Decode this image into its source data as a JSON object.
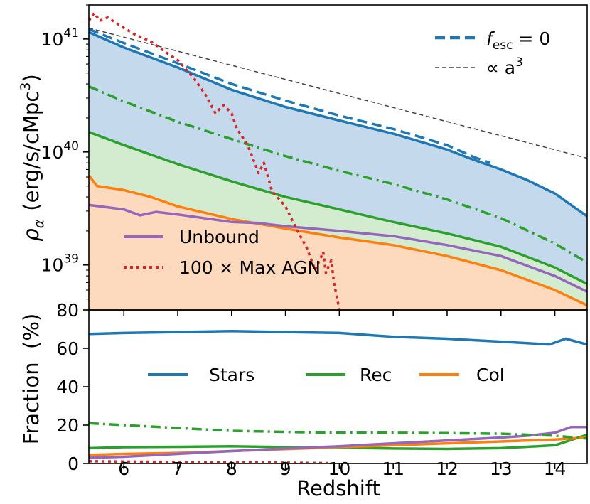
{
  "chart_data": [
    {
      "type": "area",
      "ylabel_symbol": "ρ",
      "ylabel_sub": "α",
      "ylabel_units": "(erg/s/cMpc",
      "ylabel_units_sup": "3",
      "ylabel_units_close": ")",
      "xlim": [
        5.35,
        14.6
      ],
      "ylim": [
        400000000000000000000000000000000000000,
        2e+41
      ],
      "yscale": "log",
      "yticks": [
        {
          "value": 1e+39,
          "base": "10",
          "exp": "39"
        },
        {
          "value": 1e+40,
          "base": "10",
          "exp": "40"
        },
        {
          "value": 1e+41,
          "base": "10",
          "exp": "41"
        }
      ],
      "grid": false,
      "series": [
        {
          "id": "stars",
          "style": "solid",
          "color": "#1f77b4",
          "fill": "#c5d9ec",
          "x": [
            5.35,
            6,
            7,
            8,
            9,
            10,
            11,
            12,
            12.5,
            13,
            13.5,
            14,
            14.3,
            14.6
          ],
          "y": [
            1.15e+41,
            8.4e+40,
            5.6e+40,
            3.55e+40,
            2.5e+40,
            1.9e+40,
            1.45e+40,
            1.05e+40,
            8.5e+39,
            7e+39,
            5.6e+39,
            4.3e+39,
            3.4e+39,
            2.7e+39
          ]
        },
        {
          "id": "stars-fesc0",
          "style": "dashed",
          "color": "#1f77b4",
          "x": [
            5.35,
            6,
            7,
            8,
            9,
            10,
            11,
            12,
            12.5,
            12.8
          ],
          "y": [
            1.22e+41,
            9.2e+40,
            6.1e+40,
            4e+40,
            2.85e+40,
            2.1e+40,
            1.6e+40,
            1.15e+40,
            9e+39,
            8e+39
          ]
        },
        {
          "id": "rec-fesc0",
          "style": "dashdot",
          "color": "#2ca02c",
          "x": [
            5.35,
            6,
            7,
            8,
            9,
            10,
            11,
            12,
            13,
            14,
            14.6
          ],
          "y": [
            3.8e+40,
            2.8e+40,
            1.85e+40,
            1.3e+40,
            9.2e+39,
            6.8e+39,
            5.2e+39,
            3.8e+39,
            2.6e+39,
            1.55e+39,
            1.05e+39
          ]
        },
        {
          "id": "rec",
          "style": "solid",
          "color": "#2ca02c",
          "fill": "#d3ecd0",
          "x": [
            5.35,
            6,
            7,
            8,
            9,
            10,
            11,
            12,
            13,
            14,
            14.6
          ],
          "y": [
            1.5e+40,
            1.15e+40,
            7.8e+39,
            5.5e+39,
            4e+39,
            3.1e+39,
            2.4e+39,
            1.9e+39,
            1.45e+39,
            9.5e+38,
            6.8e+38
          ]
        },
        {
          "id": "col",
          "style": "solid",
          "color": "#ff7f0e",
          "fill": "#fdd9bd",
          "x": [
            5.35,
            5.5,
            6,
            6.5,
            7,
            8,
            9,
            10,
            11,
            12,
            13,
            14,
            14.6
          ],
          "y": [
            6.2e+39,
            5e+39,
            4.6e+39,
            4e+39,
            3.3e+39,
            2.55e+39,
            2.1e+39,
            1.75e+39,
            1.5e+39,
            1.2e+39,
            9e+38,
            6e+38,
            4.4e+38
          ]
        },
        {
          "id": "unbound",
          "style": "solid",
          "color": "#9467bd",
          "x": [
            5.35,
            6,
            6.3,
            6.6,
            7,
            8,
            8.5,
            9,
            10,
            11,
            12,
            13,
            14,
            14.6
          ],
          "y": [
            3.4e+39,
            3.1e+39,
            2.75e+39,
            2.95e+39,
            2.8e+39,
            2.4e+39,
            2.35e+39,
            2.2e+39,
            2e+39,
            1.8e+39,
            1.5e+39,
            1.2e+39,
            8e+38,
            5.8e+38
          ]
        },
        {
          "id": "max-agn",
          "style": "dotted",
          "color": "#d62728",
          "x": [
            5.35,
            5.45,
            5.55,
            5.7,
            6,
            6.2,
            6.5,
            6.8,
            7,
            7.3,
            7.5,
            7.7,
            7.85,
            8,
            8.1,
            8.3,
            8.5,
            8.6,
            8.75,
            9,
            9.2,
            9.4,
            9.55,
            9.7,
            9.75,
            9.85,
            9.9,
            10
          ],
          "y": [
            1.45e+41,
            1.7e+41,
            1.45e+41,
            1.55e+41,
            1.25e+41,
            1.1e+41,
            9.5e+40,
            7.5e+40,
            6.5e+40,
            4.5e+40,
            3.3e+40,
            2.2e+40,
            2.6e+40,
            2.2e+40,
            1.6e+40,
            1.15e+40,
            6.5e+39,
            8e+39,
            4.5e+39,
            3.3e+39,
            2.1e+39,
            1.4e+39,
            9e+38,
            1.3e+39,
            8.5e+38,
            1.1e+39,
            7e+38,
            4e+38
          ]
        },
        {
          "id": "a3",
          "style": "thin-dashed",
          "color": "#444444",
          "x": [
            5.35,
            14.6
          ],
          "y": [
            1.25e+41,
            8.8e+39
          ]
        }
      ],
      "legend_top_right": [
        {
          "series": "stars-fesc0",
          "label_pre": "f",
          "label_sub": "esc",
          "label_post": " = 0"
        },
        {
          "series": "a3",
          "label_pre": "∝ a",
          "label_sup": "3"
        }
      ],
      "legend_lower_left": [
        {
          "series": "unbound",
          "label": "Unbound"
        },
        {
          "series": "max-agn",
          "label": "100 × Max AGN"
        }
      ]
    },
    {
      "type": "line",
      "xlabel": "Redshift",
      "ylabel": "Fraction  (%)",
      "xlim": [
        5.35,
        14.6
      ],
      "ylim": [
        0,
        80
      ],
      "xticks": [
        6,
        7,
        8,
        9,
        10,
        11,
        12,
        13,
        14
      ],
      "yticks": [
        0,
        20,
        40,
        60,
        80
      ],
      "grid": false,
      "series": [
        {
          "id": "stars",
          "name": "Stars",
          "style": "solid",
          "color": "#1f77b4",
          "x": [
            5.35,
            6,
            7,
            8,
            9,
            10,
            11,
            12,
            13,
            13.9,
            14.2,
            14.6
          ],
          "y": [
            67.5,
            68,
            68.5,
            69,
            68.5,
            68,
            66,
            65,
            63.5,
            62,
            65,
            62
          ]
        },
        {
          "id": "rec",
          "name": "Rec",
          "style": "solid",
          "color": "#2ca02c",
          "x": [
            5.35,
            6,
            7,
            8,
            9,
            10,
            11,
            12,
            13,
            14,
            14.6
          ],
          "y": [
            8,
            8.5,
            8.7,
            9,
            8.5,
            8.2,
            7.8,
            7.6,
            8,
            9.5,
            15
          ]
        },
        {
          "id": "col",
          "name": "Col",
          "style": "solid",
          "color": "#ff7f0e",
          "x": [
            5.35,
            6,
            7,
            8,
            9,
            10,
            11,
            12,
            13,
            14,
            14.6
          ],
          "y": [
            4.5,
            5,
            5.5,
            6.5,
            7.5,
            8.5,
            9.5,
            10.5,
            11.5,
            12.5,
            13.5
          ]
        },
        {
          "id": "unbound",
          "style": "solid",
          "color": "#9467bd",
          "x": [
            5.35,
            6,
            7,
            8,
            9,
            10,
            11,
            12,
            13,
            13.5,
            14,
            14.3,
            14.6
          ],
          "y": [
            3,
            3.5,
            5,
            6.5,
            7.8,
            9,
            10.5,
            12,
            13.5,
            14.5,
            16,
            19,
            19
          ]
        },
        {
          "id": "rec-fesc0",
          "style": "dashdot",
          "color": "#2ca02c",
          "x": [
            5.35,
            6,
            7,
            8,
            9,
            10,
            11,
            12,
            13,
            14,
            14.6
          ],
          "y": [
            21,
            20,
            18.5,
            17,
            16.5,
            16,
            16,
            15.8,
            15.5,
            14.5,
            13
          ]
        },
        {
          "id": "max-agn",
          "style": "dotted",
          "color": "#d62728",
          "x": [
            5.35,
            6,
            7,
            8,
            9,
            9.8
          ],
          "y": [
            1.2,
            1,
            0.8,
            0.6,
            0.4,
            0.2
          ]
        }
      ],
      "legend": [
        {
          "series": "stars",
          "label": "Stars"
        },
        {
          "series": "rec",
          "label": "Rec"
        },
        {
          "series": "col",
          "label": "Col"
        }
      ]
    }
  ]
}
